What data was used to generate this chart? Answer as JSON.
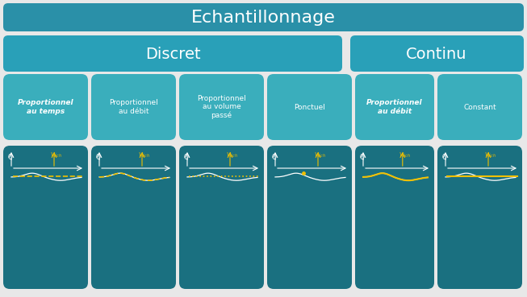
{
  "title": "Echantillonnage",
  "discret_label": "Discret",
  "continu_label": "Continu",
  "categories": [
    {
      "label": "Proportionnel\nau temps",
      "bold_italic": true
    },
    {
      "label": "Proportionnel\nau débit",
      "bold_italic": false
    },
    {
      "label": "Proportionnel\nau volume\npassé",
      "bold_italic": false
    },
    {
      "label": "Ponctuel",
      "bold_italic": false
    },
    {
      "label": "Proportionnel\nau débit",
      "bold_italic": true
    },
    {
      "label": "Constant",
      "bold_italic": false
    }
  ],
  "bg_color": "#e8e8e8",
  "title_bar_color": "#2a90a8",
  "discret_bar_color": "#29a0b8",
  "continu_bar_color": "#29a0b8",
  "cell_color": "#3aaebc",
  "graph_bg_color": "#1a7080",
  "gap_color": "#a0a0a0",
  "title_text_color": "#ffffff",
  "cell_text_color": "#ffffff",
  "yellow_color": "#f0c000",
  "white_color": "#ffffff"
}
